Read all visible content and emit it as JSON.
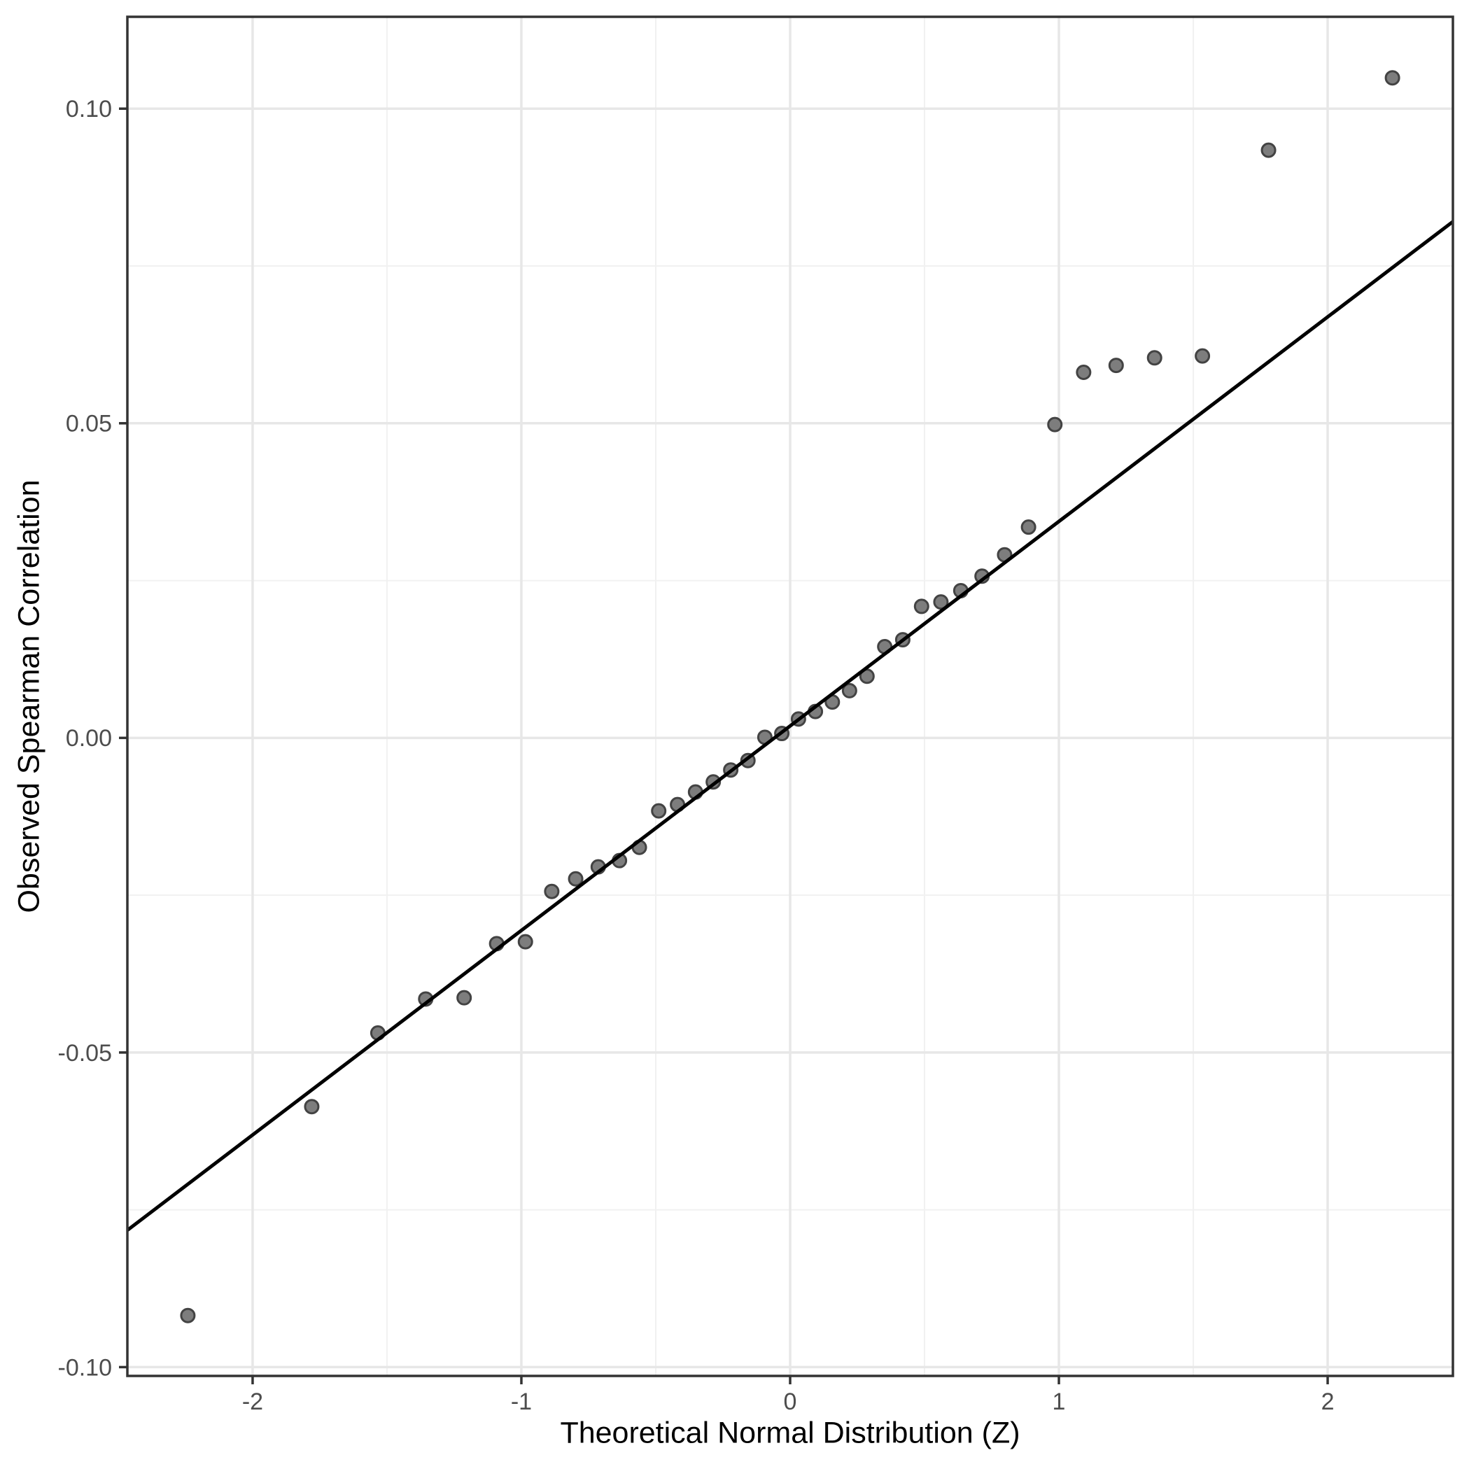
{
  "chart_data": {
    "type": "scatter",
    "title": "",
    "xlabel": "Theoretical Normal Distribution (Z)",
    "ylabel": "Observed Spearman Correlation",
    "legend_position": "none",
    "grid": "major+minor",
    "xlim": [
      -2.466,
      2.466
    ],
    "ylim": [
      -0.1014,
      0.1146
    ],
    "x_tick_values": [
      -2,
      -1,
      0,
      1,
      2
    ],
    "x_tick_labels": [
      "-2",
      "-1",
      "0",
      "1",
      "2"
    ],
    "y_tick_values": [
      -0.1,
      -0.05,
      0.0,
      0.05,
      0.1
    ],
    "y_tick_labels": [
      "-0.10",
      "-0.05",
      "0.00",
      "0.05",
      "0.10"
    ],
    "x_minor_gridlines": [
      -1.5,
      -0.5,
      0.5,
      1.5
    ],
    "y_minor_gridlines": [
      -0.075,
      -0.025,
      0.025,
      0.075
    ],
    "series": [
      {
        "name": "observed-spearman-correlations",
        "type": "points",
        "points": [
          [
            -2.241,
            -0.0918
          ],
          [
            -1.78,
            -0.0586
          ],
          [
            -1.534,
            -0.0469
          ],
          [
            -1.356,
            -0.0415
          ],
          [
            -1.213,
            -0.0413
          ],
          [
            -1.092,
            -0.0327
          ],
          [
            -0.985,
            -0.0324
          ],
          [
            -0.887,
            -0.0244
          ],
          [
            -0.798,
            -0.0224
          ],
          [
            -0.714,
            -0.0205
          ],
          [
            -0.635,
            -0.0195
          ],
          [
            -0.561,
            -0.0174
          ],
          [
            -0.489,
            -0.0116
          ],
          [
            -0.419,
            -0.0106
          ],
          [
            -0.352,
            -0.0086
          ],
          [
            -0.286,
            -0.007
          ],
          [
            -0.221,
            -0.0051
          ],
          [
            -0.157,
            -0.0036
          ],
          [
            -0.094,
            0.0001
          ],
          [
            -0.031,
            0.0007
          ],
          [
            0.031,
            0.003
          ],
          [
            0.094,
            0.0042
          ],
          [
            0.157,
            0.0057
          ],
          [
            0.221,
            0.0075
          ],
          [
            0.286,
            0.0098
          ],
          [
            0.352,
            0.0145
          ],
          [
            0.419,
            0.0156
          ],
          [
            0.489,
            0.0209
          ],
          [
            0.561,
            0.0216
          ],
          [
            0.635,
            0.0234
          ],
          [
            0.714,
            0.0257
          ],
          [
            0.798,
            0.0291
          ],
          [
            0.887,
            0.0335
          ],
          [
            0.985,
            0.0498
          ],
          [
            1.092,
            0.0581
          ],
          [
            1.213,
            0.0592
          ],
          [
            1.356,
            0.0604
          ],
          [
            1.534,
            0.0607
          ],
          [
            1.78,
            0.0934
          ],
          [
            2.241,
            0.1049
          ]
        ]
      },
      {
        "name": "qq-reference-line",
        "type": "line",
        "intercept": 0.0019,
        "slope": 0.0325
      }
    ],
    "colors": {
      "background": "#ffffff",
      "panel_background": "#ffffff",
      "panel_border": "#333333",
      "grid_major": "#e7e7e7",
      "grid_minor": "#f1f1f1",
      "point_fill": "#7d7d7d",
      "point_stroke": "#434343",
      "reference_line": "#000000",
      "tick_mark": "#333333",
      "tick_label": "#4d4d4d",
      "axis_title": "#000000"
    }
  }
}
